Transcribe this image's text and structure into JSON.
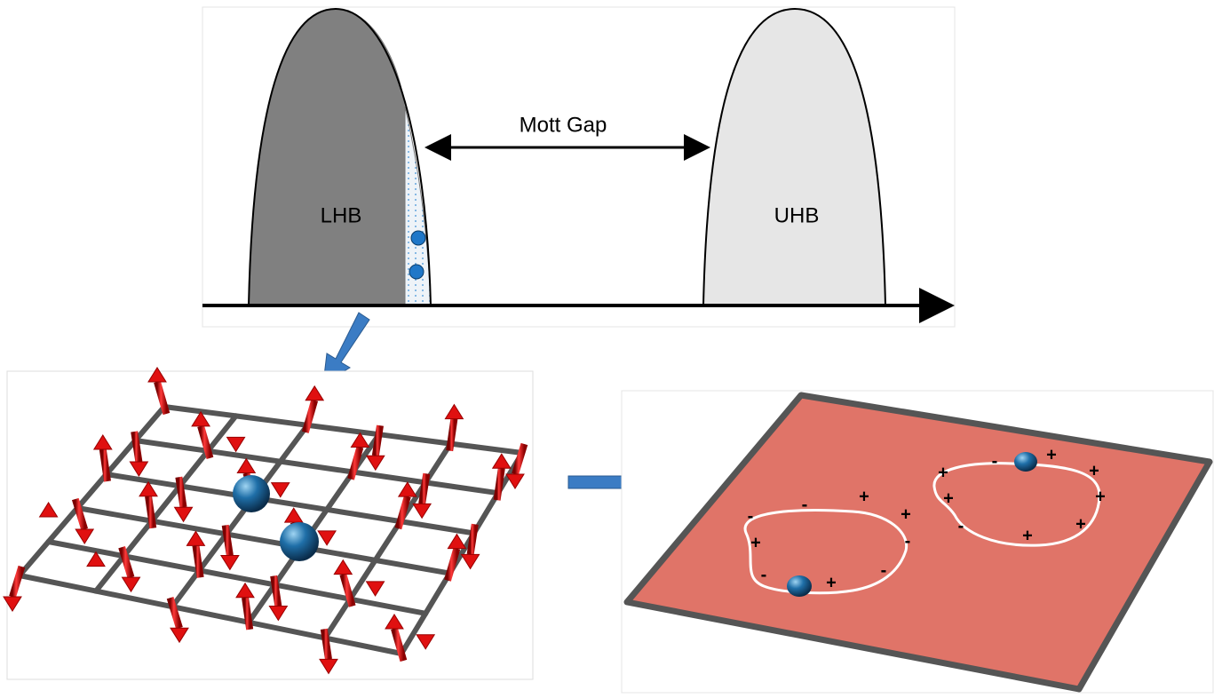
{
  "band_diagram": {
    "gap_label": "Mott Gap",
    "lower_band": "LHB",
    "upper_band": "UHB"
  },
  "charges": [
    "-",
    "-",
    "+",
    "+",
    "+",
    "-",
    "-",
    "+",
    "-",
    "+",
    "-",
    "+",
    "+",
    "+",
    "+",
    "-",
    "+",
    "+"
  ]
}
